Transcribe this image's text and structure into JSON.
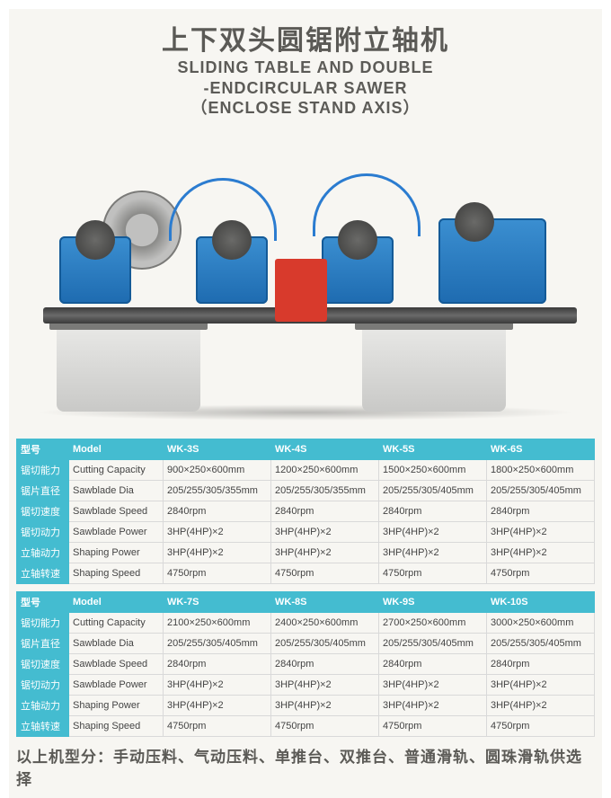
{
  "title": {
    "cn": "上下双头圆锯附立轴机",
    "en": "SLIDING TABLE AND DOUBLE\n-ENDCIRCULAR SAWER\n（ENCLOSE STAND AXIS）"
  },
  "colors": {
    "accent": "#44bcd0",
    "machine_blue": "#1e6bb0",
    "panel_red": "#d83a2c",
    "text_gray": "#5b5a56",
    "background": "#f7f6f2"
  },
  "tables": [
    {
      "header_cn": "型号",
      "header_en": "Model",
      "models": [
        "WK-3S",
        "WK-4S",
        "WK-5S",
        "WK-6S"
      ],
      "rows": [
        {
          "cn": "锯切能力",
          "en": "Cutting Capacity",
          "vals": [
            "900×250×600mm",
            "1200×250×600mm",
            "1500×250×600mm",
            "1800×250×600mm"
          ]
        },
        {
          "cn": "锯片直径",
          "en": "Sawblade Dia",
          "vals": [
            "205/255/305/355mm",
            "205/255/305/355mm",
            "205/255/305/405mm",
            "205/255/305/405mm"
          ]
        },
        {
          "cn": "锯切速度",
          "en": "Sawblade Speed",
          "vals": [
            "2840rpm",
            "2840rpm",
            "2840rpm",
            "2840rpm"
          ]
        },
        {
          "cn": "锯切动力",
          "en": "Sawblade Power",
          "vals": [
            "3HP(4HP)×2",
            "3HP(4HP)×2",
            "3HP(4HP)×2",
            "3HP(4HP)×2"
          ]
        },
        {
          "cn": "立轴动力",
          "en": "Shaping Power",
          "vals": [
            "3HP(4HP)×2",
            "3HP(4HP)×2",
            "3HP(4HP)×2",
            "3HP(4HP)×2"
          ]
        },
        {
          "cn": "立轴转速",
          "en": "Shaping Speed",
          "vals": [
            "4750rpm",
            "4750rpm",
            "4750rpm",
            "4750rpm"
          ]
        }
      ]
    },
    {
      "header_cn": "型号",
      "header_en": "Model",
      "models": [
        "WK-7S",
        "WK-8S",
        "WK-9S",
        "WK-10S"
      ],
      "rows": [
        {
          "cn": "锯切能力",
          "en": "Cutting Capacity",
          "vals": [
            "2100×250×600mm",
            "2400×250×600mm",
            "2700×250×600mm",
            "3000×250×600mm"
          ]
        },
        {
          "cn": "锯片直径",
          "en": "Sawblade Dia",
          "vals": [
            "205/255/305/405mm",
            "205/255/305/405mm",
            "205/255/305/405mm",
            "205/255/305/405mm"
          ]
        },
        {
          "cn": "锯切速度",
          "en": "Sawblade Speed",
          "vals": [
            "2840rpm",
            "2840rpm",
            "2840rpm",
            "2840rpm"
          ]
        },
        {
          "cn": "锯切动力",
          "en": "Sawblade Power",
          "vals": [
            "3HP(4HP)×2",
            "3HP(4HP)×2",
            "3HP(4HP)×2",
            "3HP(4HP)×2"
          ]
        },
        {
          "cn": "立轴动力",
          "en": "Shaping Power",
          "vals": [
            "3HP(4HP)×2",
            "3HP(4HP)×2",
            "3HP(4HP)×2",
            "3HP(4HP)×2"
          ]
        },
        {
          "cn": "立轴转速",
          "en": "Shaping Speed",
          "vals": [
            "4750rpm",
            "4750rpm",
            "4750rpm",
            "4750rpm"
          ]
        }
      ]
    }
  ],
  "footer": "以上机型分：手动压料、气动压料、单推台、双推台、普通滑轨、圆珠滑轨供选择"
}
